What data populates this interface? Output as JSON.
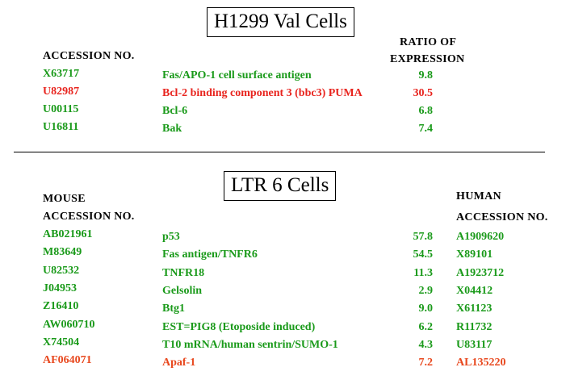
{
  "top": {
    "title": "H1299 Val Cells",
    "header_accession": "ACCESSION NO.",
    "header_ratio_line1": "RATIO OF",
    "header_ratio_line2": "EXPRESSION",
    "rows": [
      {
        "accession": "X63717",
        "gene": "Fas/APO-1 cell surface antigen",
        "ratio": "9.8",
        "color": "#1a9a1a"
      },
      {
        "accession": "U82987",
        "gene": "Bcl-2 binding component 3 (bbc3) PUMA",
        "ratio": "30.5",
        "color": "#e8241e"
      },
      {
        "accession": "U00115",
        "gene": "Bcl-6",
        "ratio": "6.8",
        "color": "#1a9a1a"
      },
      {
        "accession": "U16811",
        "gene": "Bak",
        "ratio": "7.4",
        "color": "#1a9a1a"
      }
    ]
  },
  "bottom": {
    "title": "LTR 6 Cells",
    "header_mouse_line1": "MOUSE",
    "header_mouse_line2": "ACCESSION NO.",
    "header_human_line1": "HUMAN",
    "header_human_line2": "ACCESSION NO.",
    "rows": [
      {
        "mouse": "AB021961",
        "gene": "p53",
        "ratio": "57.8",
        "human": "A1909620",
        "color": "#1a9a1a"
      },
      {
        "mouse": "M83649",
        "gene": "Fas antigen/TNFR6",
        "ratio": "54.5",
        "human": "X89101",
        "color": "#1a9a1a"
      },
      {
        "mouse": "U82532",
        "gene": "TNFR18",
        "ratio": "11.3",
        "human": "A1923712",
        "color": "#1a9a1a"
      },
      {
        "mouse": "J04953",
        "gene": "Gelsolin",
        "ratio": "2.9",
        "human": "X04412",
        "color": "#1a9a1a"
      },
      {
        "mouse": "Z16410",
        "gene": "Btg1",
        "ratio": "9.0",
        "human": "X61123",
        "color": "#1a9a1a"
      },
      {
        "mouse": "AW060710",
        "gene": "EST=PIG8 (Etoposide induced)",
        "ratio": "6.2",
        "human": "R11732",
        "color": "#1a9a1a"
      },
      {
        "mouse": "X74504",
        "gene": "T10 mRNA/human sentrin/SUMO-1",
        "ratio": "4.3",
        "human": "U83117",
        "color": "#1a9a1a"
      },
      {
        "mouse": "AF064071",
        "gene": "Apaf-1",
        "ratio": "7.2",
        "human": "AL135220",
        "color": "#e8481e"
      }
    ]
  }
}
